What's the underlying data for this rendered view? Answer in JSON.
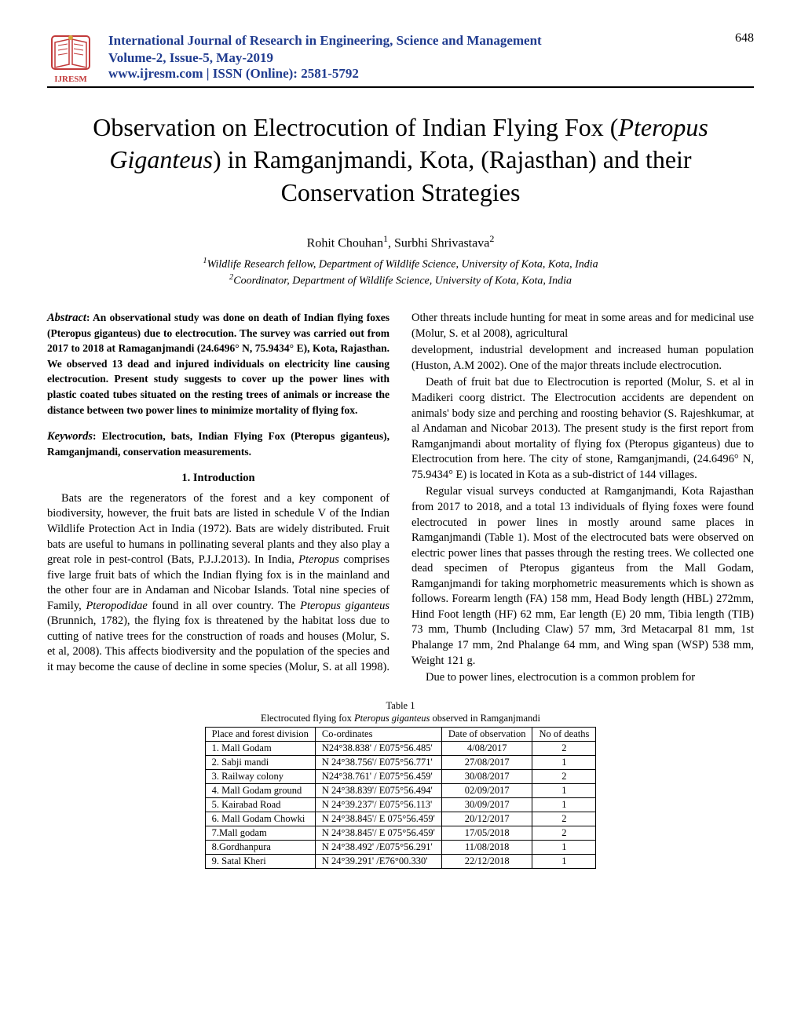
{
  "header": {
    "journal": "International Journal of Research in Engineering, Science and Management",
    "volume": "Volume-2, Issue-5, May-2019",
    "link": "www.ijresm.com | ISSN (Online): 2581-5792",
    "page": "648",
    "logo_label": "IJRESM"
  },
  "title_parts": {
    "pre": "Observation on Electrocution of Indian Flying Fox (",
    "species": "Pteropus Giganteus",
    "post": ") in Ramganjmandi, Kota, (Rajasthan) and their Conservation Strategies"
  },
  "authors": {
    "a1": "Rohit Chouhan",
    "a2": "Surbhi Shrivastava"
  },
  "affil": {
    "l1": "Wildlife Research fellow, Department of Wildlife Science, University of Kota, Kota, India",
    "l2": "Coordinator, Department of Wildlife Science, University of Kota, Kota, India"
  },
  "abstract": {
    "label": "Abstract",
    "text": ": An observational study was done on death of Indian flying foxes (Pteropus giganteus) due to electrocution. The survey was carried out from 2017 to 2018 at Ramaganjmandi (24.6496° N, 75.9434° E), Kota, Rajasthan. We observed 13 dead and injured individuals on electricity line causing electrocution. Present study suggests to cover up the power lines with plastic coated tubes situated on the resting trees of animals or increase the distance between two power lines to minimize mortality of flying fox."
  },
  "keywords": {
    "label": "Keywords",
    "text": ": Electrocution, bats, Indian Flying Fox (Pteropus giganteus), Ramganjmandi, conservation measurements."
  },
  "section1_head": "1. Introduction",
  "col1": {
    "p1a": "Bats are the regenerators of the forest and a key component of biodiversity, however, the fruit bats are listed in schedule V of the Indian Wildlife Protection Act in India (1972). Bats are widely distributed. Fruit bats are useful to humans in pollinating several plants and they also play a great role in pest-control (Bats, P.J.J.2013). In India, ",
    "p1b": "Pteropus",
    "p1c": " comprises five large fruit bats of which the Indian flying fox is in the mainland and the other four are in Andaman and Nicobar Islands. Total nine species of  Family, ",
    "p1d": "Pteropodidae",
    "p1e": " found in all over country. The ",
    "p1f": "Pteropus giganteus",
    "p1g": " (Brunnich, 1782), the flying fox is threatened by the habitat loss due to cutting of native trees for the construction of roads and houses (Molur, S. et al, 2008). This affects biodiversity and the population of the species and it may become the cause of decline in some species (Molur, S. at all 1998). Other threats include hunting for meat in some areas and for medicinal use (Molur, S. et al 2008), agricultural"
  },
  "col2": {
    "p1": "development, industrial development and increased human population (Huston, A.M 2002). One of the major threats include electrocution.",
    "p2": "Death of fruit bat due to Electrocution is reported (Molur, S. et al in Madikeri coorg district. The Electrocution accidents are dependent on animals' body size and perching and roosting behavior (S. Rajeshkumar, at al Andaman and Nicobar 2013). The present study is the first report from Ramganjmandi about mortality of flying fox (Pteropus giganteus) due to Electrocution from here. The city of stone, Ramganjmandi, (24.6496° N, 75.9434° E) is located in Kota as a sub-district of 144 villages.",
    "p3": "Regular visual surveys conducted at Ramganjmandi, Kota Rajasthan from 2017 to 2018, and a total 13 individuals of flying foxes were found electrocuted in power lines in mostly around same places in Ramganjmandi (Table 1). Most of the electrocuted bats were observed on electric power lines that passes through the resting trees. We collected one dead specimen of Pteropus giganteus from the Mall Godam, Ramganjmandi for taking morphometric measurements which is shown as follows. Forearm length (FA) 158 mm, Head Body length (HBL) 272mm, Hind Foot length (HF) 62 mm, Ear length (E) 20 mm, Tibia length (TIB) 73 mm, Thumb (Including Claw) 57 mm, 3rd Metacarpal 81 mm, 1st Phalange 17 mm, 2nd Phalange 64 mm, and Wing span (WSP) 538 mm, Weight 121 g.",
    "p4": "Due to power lines, electrocution is a common problem for"
  },
  "table": {
    "caption1": "Table 1",
    "caption2a": "Electrocuted flying fox ",
    "caption2b": "Pteropus giganteus",
    "caption2c": " observed in Ramganjmandi",
    "headers": [
      "Place and forest division",
      "Co-ordinates",
      "Date of observation",
      "No of deaths"
    ],
    "rows": [
      [
        "1.  Mall Godam",
        "N24°38.838' / E075°56.485'",
        "4/08/2017",
        "2"
      ],
      [
        "2.  Sabji mandi",
        "N 24°38.756'/ E075°56.771'",
        "27/08/2017",
        "1"
      ],
      [
        "3.  Railway colony",
        "N24°38.761' / E075°56.459'",
        "30/08/2017",
        "2"
      ],
      [
        "4. Mall Godam ground",
        "N 24°38.839'/ E075°56.494'",
        "02/09/2017",
        "1"
      ],
      [
        "5. Kairabad Road",
        "N 24°39.237'/ E075°56.113'",
        "30/09/2017",
        "1"
      ],
      [
        "6. Mall Godam Chowki",
        "N 24°38.845'/ E 075°56.459'",
        "20/12/2017",
        "2"
      ],
      [
        "7.Mall godam",
        "N 24°38.845'/ E 075°56.459'",
        "17/05/2018",
        "2"
      ],
      [
        "8.Gordhanpura",
        "N 24°38.492' /E075°56.291'",
        "11/08/2018",
        "1"
      ],
      [
        "9. Satal Kheri",
        "N 24°39.291' /E76°00.330'",
        "22/12/2018",
        "1"
      ]
    ]
  },
  "colors": {
    "header_blue": "#1f3b8f",
    "text": "#000000",
    "background": "#ffffff",
    "logo_red": "#c23a3a",
    "logo_gold": "#d4a63c"
  }
}
